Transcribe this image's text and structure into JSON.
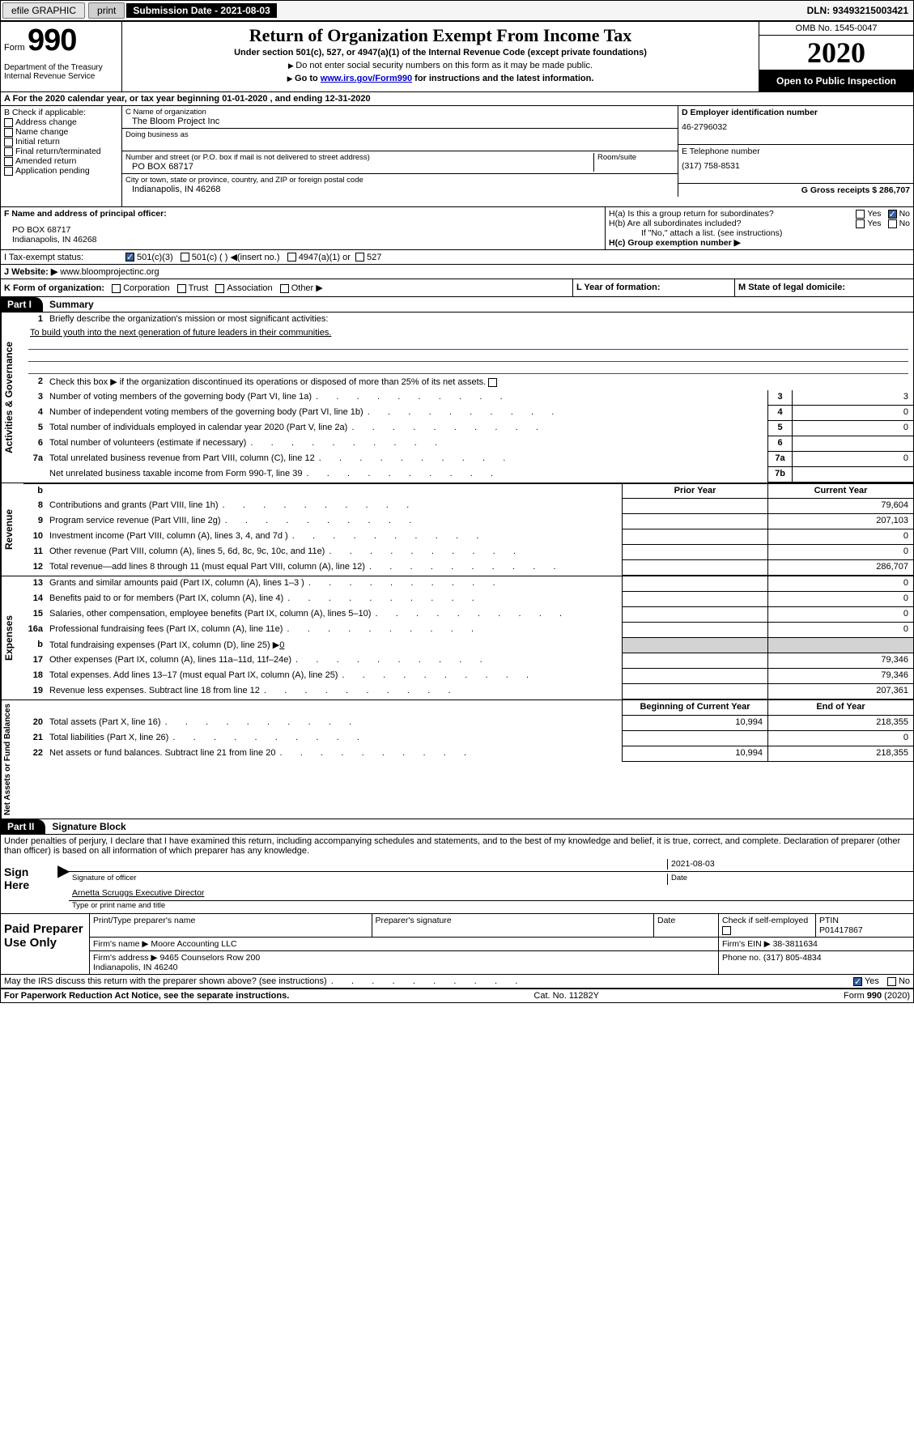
{
  "topbar": {
    "efile": "efile GRAPHIC",
    "print": "print",
    "submission": "Submission Date - 2021-08-03",
    "dln": "DLN: 93493215003421"
  },
  "header": {
    "form_prefix": "Form",
    "form_number": "990",
    "dept": "Department of the Treasury\nInternal Revenue Service",
    "title": "Return of Organization Exempt From Income Tax",
    "sub": "Under section 501(c), 527, or 4947(a)(1) of the Internal Revenue Code (except private foundations)",
    "note1": "Do not enter social security numbers on this form as it may be made public.",
    "note2_pre": "Go to ",
    "note2_link": "www.irs.gov/Form990",
    "note2_post": " for instructions and the latest information.",
    "omb": "OMB No. 1545-0047",
    "year": "2020",
    "open": "Open to Public Inspection"
  },
  "row_a": "A For the 2020 calendar year, or tax year beginning 01-01-2020    , and ending 12-31-2020",
  "box_b": {
    "intro": "B Check if applicable:",
    "items": [
      "Address change",
      "Name change",
      "Initial return",
      "Final return/terminated",
      "Amended return",
      "Application pending"
    ]
  },
  "box_c": {
    "c_label": "C Name of organization",
    "c_name": "The Bloom Project Inc",
    "dba_label": "Doing business as",
    "addr_label": "Number and street (or P.O. box if mail is not delivered to street address)",
    "room_label": "Room/suite",
    "addr": "PO BOX 68717",
    "city_label": "City or town, state or province, country, and ZIP or foreign postal code",
    "city": "Indianapolis, IN  46268"
  },
  "box_d": {
    "d_label": "D Employer identification number",
    "ein": "46-2796032",
    "e_label": "E Telephone number",
    "phone": "(317) 758-8531",
    "g_label": "G Gross receipts $ 286,707"
  },
  "box_f": {
    "f_label": "F  Name and address of principal officer:",
    "addr": "PO BOX 68717\nIndianapolis, IN  46268"
  },
  "box_h": {
    "ha": "H(a)  Is this a group return for subordinates?",
    "hb": "H(b)  Are all subordinates included?",
    "hb_note": "If \"No,\" attach a list. (see instructions)",
    "hc": "H(c)  Group exemption number ▶"
  },
  "row_i": {
    "label": "I    Tax-exempt status:",
    "opts": [
      "501(c)(3)",
      "501(c) (  ) ◀(insert no.)",
      "4947(a)(1) or",
      "527"
    ]
  },
  "row_j": {
    "label": "J  Website: ▶",
    "val": "  www.bloomprojectinc.org"
  },
  "row_k": {
    "left": "K Form of organization:",
    "opts": [
      "Corporation",
      "Trust",
      "Association",
      "Other ▶"
    ],
    "l": "L Year of formation:",
    "m": "M State of legal domicile:"
  },
  "part1": {
    "tab": "Part I",
    "title": "Summary"
  },
  "governance": {
    "side": "Activities & Governance",
    "l1a": "Briefly describe the organization's mission or most significant activities:",
    "l1b": "To build youth into the next generation of future leaders in their communities.",
    "l2": "Check this box ▶        if the organization discontinued its operations or disposed of more than 25% of its net assets.",
    "lines": [
      {
        "n": "3",
        "t": "Number of voting members of the governing body (Part VI, line 1a)",
        "k": "3",
        "v": "3"
      },
      {
        "n": "4",
        "t": "Number of independent voting members of the governing body (Part VI, line 1b)",
        "k": "4",
        "v": "0"
      },
      {
        "n": "5",
        "t": "Total number of individuals employed in calendar year 2020 (Part V, line 2a)",
        "k": "5",
        "v": "0"
      },
      {
        "n": "6",
        "t": "Total number of volunteers (estimate if necessary)",
        "k": "6",
        "v": ""
      },
      {
        "n": "7a",
        "t": "Total unrelated business revenue from Part VIII, column (C), line 12",
        "k": "7a",
        "v": "0"
      },
      {
        "n": "",
        "t": "Net unrelated business taxable income from Form 990-T, line 39",
        "k": "7b",
        "v": ""
      }
    ]
  },
  "revenue": {
    "side": "Revenue",
    "head_b": "b",
    "head_prior": "Prior Year",
    "head_curr": "Current Year",
    "lines": [
      {
        "n": "8",
        "t": "Contributions and grants (Part VIII, line 1h)",
        "p": "",
        "c": "79,604"
      },
      {
        "n": "9",
        "t": "Program service revenue (Part VIII, line 2g)",
        "p": "",
        "c": "207,103"
      },
      {
        "n": "10",
        "t": "Investment income (Part VIII, column (A), lines 3, 4, and 7d )",
        "p": "",
        "c": "0"
      },
      {
        "n": "11",
        "t": "Other revenue (Part VIII, column (A), lines 5, 6d, 8c, 9c, 10c, and 11e)",
        "p": "",
        "c": "0"
      },
      {
        "n": "12",
        "t": "Total revenue—add lines 8 through 11 (must equal Part VIII, column (A), line 12)",
        "p": "",
        "c": "286,707"
      }
    ]
  },
  "expenses": {
    "side": "Expenses",
    "lines": [
      {
        "n": "13",
        "t": "Grants and similar amounts paid (Part IX, column (A), lines 1–3 )",
        "p": "",
        "c": "0"
      },
      {
        "n": "14",
        "t": "Benefits paid to or for members (Part IX, column (A), line 4)",
        "p": "",
        "c": "0"
      },
      {
        "n": "15",
        "t": "Salaries, other compensation, employee benefits (Part IX, column (A), lines 5–10)",
        "p": "",
        "c": "0"
      },
      {
        "n": "16a",
        "t": "Professional fundraising fees (Part IX, column (A), line 11e)",
        "p": "",
        "c": "0"
      }
    ],
    "line_b": {
      "n": "b",
      "t": "Total fundraising expenses (Part IX, column (D), line 25) ▶",
      "u": "0"
    },
    "lines2": [
      {
        "n": "17",
        "t": "Other expenses (Part IX, column (A), lines 11a–11d, 11f–24e)",
        "p": "",
        "c": "79,346"
      },
      {
        "n": "18",
        "t": "Total expenses. Add lines 13–17 (must equal Part IX, column (A), line 25)",
        "p": "",
        "c": "79,346"
      },
      {
        "n": "19",
        "t": "Revenue less expenses. Subtract line 18 from line 12",
        "p": "",
        "c": "207,361"
      }
    ]
  },
  "netassets": {
    "side": "Net Assets or Fund Balances",
    "head_begin": "Beginning of Current Year",
    "head_end": "End of Year",
    "lines": [
      {
        "n": "20",
        "t": "Total assets (Part X, line 16)",
        "p": "10,994",
        "c": "218,355"
      },
      {
        "n": "21",
        "t": "Total liabilities (Part X, line 26)",
        "p": "",
        "c": "0"
      },
      {
        "n": "22",
        "t": "Net assets or fund balances. Subtract line 21 from line 20",
        "p": "10,994",
        "c": "218,355"
      }
    ]
  },
  "part2": {
    "tab": "Part II",
    "title": "Signature Block"
  },
  "sig": {
    "decl": "Under penalties of perjury, I declare that I have examined this return, including accompanying schedules and statements, and to the best of my knowledge and belief, it is true, correct, and complete. Declaration of preparer (other than officer) is based on all information of which preparer has any knowledge.",
    "sign_here": "Sign Here",
    "sig_officer": "Signature of officer",
    "date_val": "2021-08-03",
    "date_lbl": "Date",
    "officer_name": "Arnetta Scruggs  Executive Director",
    "type_name": "Type or print name and title"
  },
  "prep": {
    "label": "Paid Preparer Use Only",
    "h1": "Print/Type preparer's name",
    "h2": "Preparer's signature",
    "h3": "Date",
    "h4": "Check         if self-employed",
    "h5": "PTIN",
    "ptin": "P01417867",
    "firm_name_lbl": "Firm's name    ▶",
    "firm_name": "Moore Accounting LLC",
    "firm_ein_lbl": "Firm's EIN ▶",
    "firm_ein": "38-3811634",
    "firm_addr_lbl": "Firm's address ▶",
    "firm_addr": "9465 Counselors Row 200\nIndianapolis, IN  46240",
    "phone_lbl": "Phone no.",
    "phone": "(317) 805-4834"
  },
  "bottom": {
    "q": "May the IRS discuss this return with the preparer shown above? (see instructions)",
    "yes": "Yes",
    "no": "No"
  },
  "footer": {
    "left": "For Paperwork Reduction Act Notice, see the separate instructions.",
    "mid": "Cat. No. 11282Y",
    "right": "Form 990 (2020)"
  }
}
